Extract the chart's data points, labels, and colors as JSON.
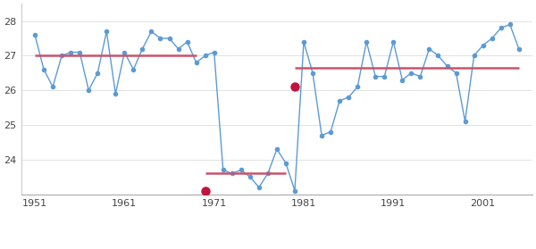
{
  "years": [
    1951,
    1952,
    1953,
    1954,
    1955,
    1956,
    1957,
    1958,
    1959,
    1960,
    1961,
    1962,
    1963,
    1964,
    1965,
    1966,
    1967,
    1968,
    1969,
    1970,
    1971,
    1972,
    1973,
    1974,
    1975,
    1976,
    1977,
    1978,
    1979,
    1980,
    1981,
    1982,
    1983,
    1984,
    1985,
    1986,
    1987,
    1988,
    1989,
    1990,
    1991,
    1992,
    1993,
    1994,
    1995,
    1996,
    1997,
    1998,
    1999,
    2000,
    2001,
    2002,
    2003,
    2004,
    2005
  ],
  "values": [
    27.6,
    26.6,
    26.1,
    27.0,
    27.1,
    27.1,
    26.0,
    26.5,
    27.7,
    25.9,
    27.1,
    26.6,
    27.2,
    27.7,
    27.5,
    27.5,
    27.2,
    27.4,
    26.8,
    27.0,
    27.1,
    23.7,
    23.6,
    23.7,
    23.5,
    23.2,
    23.6,
    24.3,
    23.9,
    23.1,
    27.4,
    26.5,
    24.7,
    24.8,
    25.7,
    25.8,
    26.1,
    27.4,
    26.4,
    26.4,
    27.4,
    26.3,
    26.5,
    26.4,
    27.2,
    27.0,
    26.7,
    26.5,
    25.1,
    27.0,
    27.3,
    27.5,
    27.8,
    27.9,
    27.2
  ],
  "segment_means": [
    {
      "x_start": 1951,
      "x_end": 1969,
      "y": 27.0
    },
    {
      "x_start": 1970,
      "x_end": 1979,
      "y": 23.6
    },
    {
      "x_start": 1980,
      "x_end": 2005,
      "y": 26.65
    }
  ],
  "change_points": [
    {
      "year": 1970,
      "value": 23.1
    },
    {
      "year": 1980,
      "value": 26.1
    }
  ],
  "line_color": "#5b9bd5",
  "mean_color": "#c8546a",
  "change_point_color": "#c0143c",
  "background_color": "#ffffff",
  "plot_bg_color": "#ffffff",
  "xticks": [
    1951,
    1961,
    1971,
    1981,
    1991,
    2001
  ],
  "yticks": [
    24,
    25,
    26,
    27,
    28
  ],
  "ylim": [
    23.0,
    28.5
  ],
  "xlim": [
    1949.5,
    2006.5
  ]
}
